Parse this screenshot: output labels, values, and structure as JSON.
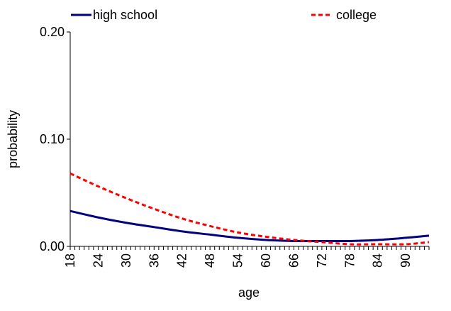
{
  "chart_data": {
    "type": "line",
    "title": "",
    "xlabel": "age",
    "ylabel": "probability",
    "xlim": [
      18,
      95
    ],
    "ylim": [
      0,
      0.2
    ],
    "y_ticks": [
      "0.00",
      "0.10",
      "0.20"
    ],
    "x_ticks": [
      "18",
      "24",
      "30",
      "36",
      "42",
      "48",
      "54",
      "60",
      "66",
      "72",
      "78",
      "84",
      "90"
    ],
    "grid": false,
    "legend_placement": "top",
    "series": [
      {
        "name": "high school",
        "color": "#000080",
        "dash": "solid",
        "x": [
          18,
          24,
          30,
          36,
          42,
          48,
          54,
          60,
          66,
          72,
          78,
          84,
          90,
          95
        ],
        "y": [
          0.033,
          0.027,
          0.022,
          0.018,
          0.014,
          0.011,
          0.008,
          0.006,
          0.005,
          0.005,
          0.005,
          0.006,
          0.008,
          0.01
        ]
      },
      {
        "name": "college",
        "color": "#ff0000",
        "dash": "dashed",
        "x": [
          18,
          24,
          30,
          36,
          42,
          48,
          54,
          60,
          66,
          72,
          78,
          84,
          90,
          95
        ],
        "y": [
          0.068,
          0.056,
          0.045,
          0.035,
          0.026,
          0.019,
          0.013,
          0.009,
          0.006,
          0.004,
          0.002,
          0.002,
          0.002,
          0.004
        ]
      }
    ]
  }
}
